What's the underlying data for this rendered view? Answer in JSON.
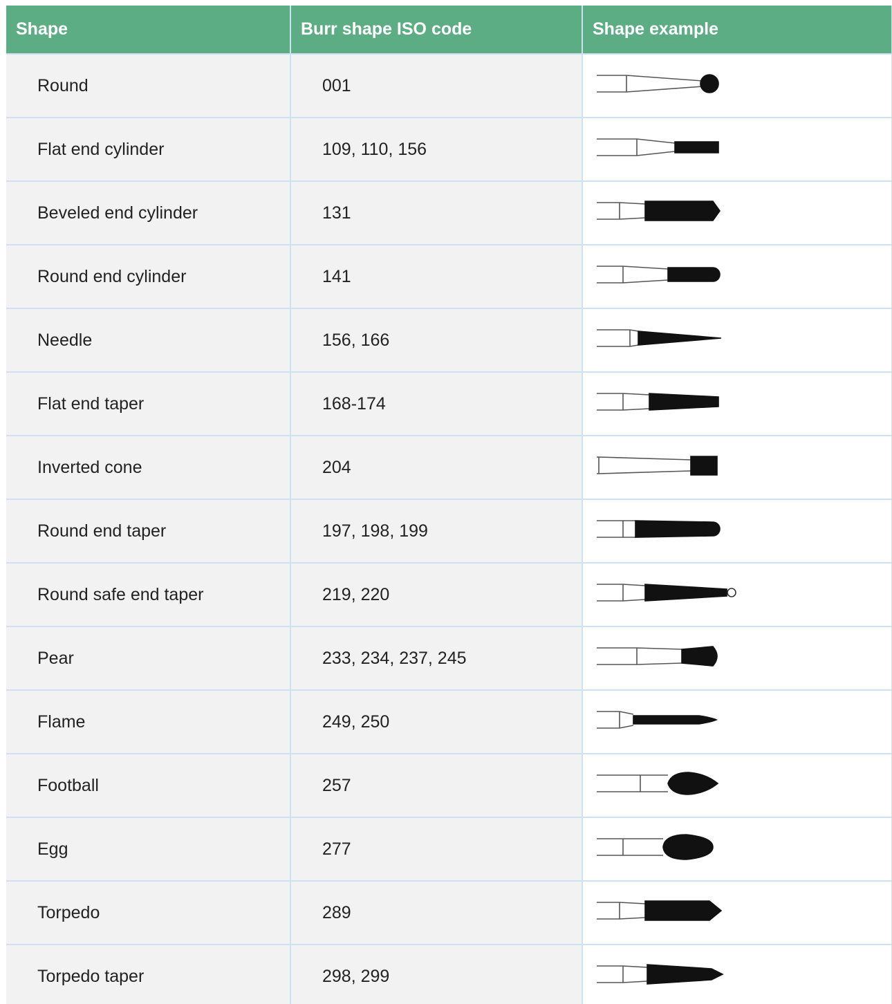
{
  "header": {
    "columns": [
      "Shape",
      "Burr shape ISO code",
      "Shape example"
    ]
  },
  "table": {
    "rows": [
      [
        "Round",
        "001"
      ],
      [
        "Flat end cylinder",
        "109, 110, 156"
      ],
      [
        "Beveled end cylinder",
        "131"
      ],
      [
        "Round end cylinder",
        "141"
      ],
      [
        "Needle",
        "156, 166"
      ],
      [
        "Flat end taper",
        "168-174"
      ],
      [
        "Inverted cone",
        "204"
      ],
      [
        "Round end taper",
        "197, 198, 199"
      ],
      [
        "Round safe end taper",
        "219, 220"
      ],
      [
        "Pear",
        "233, 234, 237, 245"
      ],
      [
        "Flame",
        "249, 250"
      ],
      [
        "Football",
        "257"
      ],
      [
        "Egg",
        "277"
      ],
      [
        "Torpedo",
        "289"
      ],
      [
        "Torpedo taper",
        "298, 299"
      ]
    ]
  }
}
